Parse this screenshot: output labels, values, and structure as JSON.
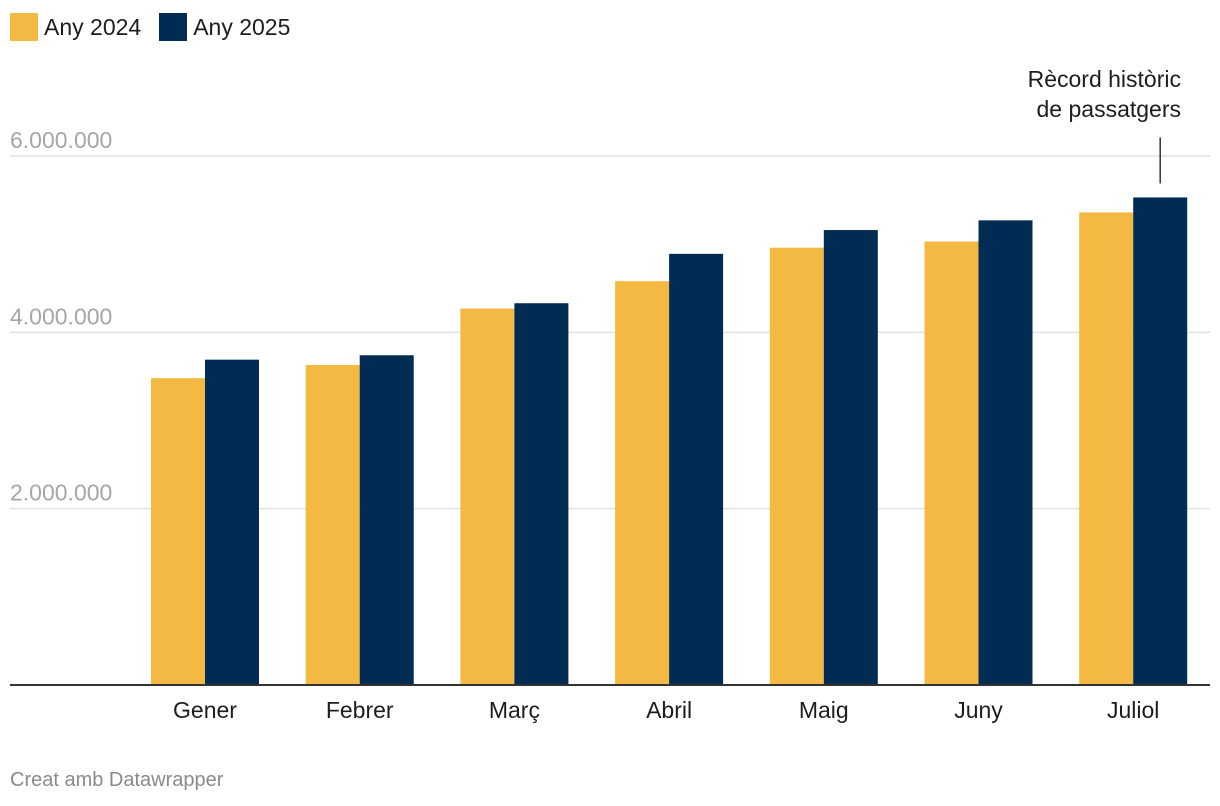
{
  "chart_data": {
    "type": "bar",
    "categories": [
      "Gener",
      "Febrer",
      "Març",
      "Abril",
      "Maig",
      "Juny",
      "Juliol"
    ],
    "series": [
      {
        "name": "Any 2024",
        "color": "#f4b942",
        "values": [
          3480000,
          3630000,
          4270000,
          4580000,
          4960000,
          5030000,
          5360000
        ]
      },
      {
        "name": "Any 2025",
        "color": "#002b52",
        "values": [
          3690000,
          3740000,
          4330000,
          4890000,
          5160000,
          5270000,
          5530000
        ]
      }
    ],
    "y_ticks": [
      {
        "value": 2000000,
        "label": "2.000.000"
      },
      {
        "value": 4000000,
        "label": "4.000.000"
      },
      {
        "value": 6000000,
        "label": "6.000.000"
      }
    ],
    "ylim": [
      0,
      6000000
    ],
    "grid": true,
    "legend": "top-left",
    "annotation": {
      "lines": [
        "Rècord històric",
        "de passatgers"
      ],
      "category": "Juliol",
      "series": "Any 2025"
    }
  },
  "footer": "Creat amb Datawrapper"
}
